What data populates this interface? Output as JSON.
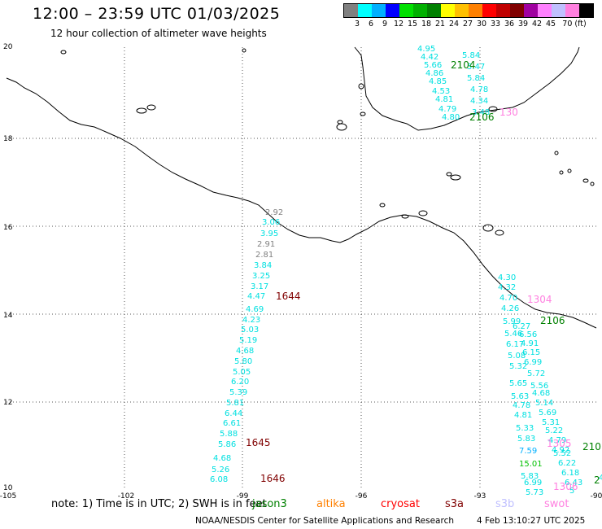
{
  "header": {
    "title": "12:00 – 23:59 UTC 01/03/2025",
    "subtitle": "12 hour collection of altimeter wave heights"
  },
  "legend": {
    "colors": [
      "#808080",
      "#00ffff",
      "#00b0ff",
      "#0000ff",
      "#00e000",
      "#00b000",
      "#008000",
      "#ffff00",
      "#ffc000",
      "#ff8000",
      "#ff0000",
      "#c00000",
      "#800000",
      "#a000a0",
      "#ff80ff",
      "#c0c0ff",
      "#ff80e0",
      "#000000"
    ],
    "labels": [
      "3",
      "6",
      "9",
      "12",
      "15",
      "18",
      "21",
      "24",
      "27",
      "30",
      "33",
      "36",
      "39",
      "42",
      "45",
      "70 (ft)"
    ]
  },
  "axes": {
    "lon_labels": [
      "-105",
      "-102",
      "-99",
      "-96",
      "-93",
      "-90"
    ],
    "lat_labels": [
      "20",
      "18",
      "16",
      "14",
      "12",
      "10"
    ]
  },
  "track_labels": [
    {
      "text": "1644",
      "color": "#800000"
    },
    {
      "text": "1645",
      "color": "#800000"
    },
    {
      "text": "1646",
      "color": "#800000"
    },
    {
      "text": "2104",
      "color": "#008000"
    },
    {
      "text": "2106",
      "color": "#008000"
    },
    {
      "text": "2106",
      "color": "#008000"
    },
    {
      "text": "130",
      "color": "#ff80e0"
    },
    {
      "text": "1304",
      "color": "#ff80e0"
    },
    {
      "text": "1305",
      "color": "#ff80e0"
    },
    {
      "text": "1306",
      "color": "#ff80e0"
    },
    {
      "text": "210",
      "color": "#008000"
    },
    {
      "text": "2",
      "color": "#008000"
    }
  ],
  "observations": [
    {
      "text": "4.95",
      "color": "#00e0e0"
    },
    {
      "text": "5.84",
      "color": "#00e0e0"
    },
    {
      "text": "4.42",
      "color": "#00e0e0"
    },
    {
      "text": "5.66",
      "color": "#00e0e0"
    },
    {
      "text": "5.47",
      "color": "#00e0e0"
    },
    {
      "text": "4.86",
      "color": "#00e0e0"
    },
    {
      "text": "5.84",
      "color": "#00e0e0"
    },
    {
      "text": "4.85",
      "color": "#00e0e0"
    },
    {
      "text": "4.78",
      "color": "#00e0e0"
    },
    {
      "text": "4.53",
      "color": "#00e0e0"
    },
    {
      "text": "4.34",
      "color": "#00e0e0"
    },
    {
      "text": "4.81",
      "color": "#00e0e0"
    },
    {
      "text": "3.48",
      "color": "#00e0e0"
    },
    {
      "text": "4.79",
      "color": "#00e0e0"
    },
    {
      "text": "4.80",
      "color": "#00e0e0"
    },
    {
      "text": "2.92",
      "color": "#808080"
    },
    {
      "text": "3.06",
      "color": "#00e0e0"
    },
    {
      "text": "3.95",
      "color": "#00e0e0"
    },
    {
      "text": "2.91",
      "color": "#808080"
    },
    {
      "text": "2.81",
      "color": "#808080"
    },
    {
      "text": "3.84",
      "color": "#00e0e0"
    },
    {
      "text": "3.25",
      "color": "#00e0e0"
    },
    {
      "text": "3.17",
      "color": "#00e0e0"
    },
    {
      "text": "4.47",
      "color": "#00e0e0"
    },
    {
      "text": "4.69",
      "color": "#00e0e0"
    },
    {
      "text": "4.23",
      "color": "#00e0e0"
    },
    {
      "text": "5.03",
      "color": "#00e0e0"
    },
    {
      "text": "5.19",
      "color": "#00e0e0"
    },
    {
      "text": "4.68",
      "color": "#00e0e0"
    },
    {
      "text": "5.80",
      "color": "#00e0e0"
    },
    {
      "text": "5.05",
      "color": "#00e0e0"
    },
    {
      "text": "6.20",
      "color": "#00e0e0"
    },
    {
      "text": "5.39",
      "color": "#00e0e0"
    },
    {
      "text": "5.81",
      "color": "#00e0e0"
    },
    {
      "text": "6.44",
      "color": "#00e0e0"
    },
    {
      "text": "6.61",
      "color": "#00e0e0"
    },
    {
      "text": "5.88",
      "color": "#00e0e0"
    },
    {
      "text": "5.86",
      "color": "#00e0e0"
    },
    {
      "text": "4.68",
      "color": "#00e0e0"
    },
    {
      "text": "5.26",
      "color": "#00e0e0"
    },
    {
      "text": "6.08",
      "color": "#00e0e0"
    },
    {
      "text": "4.30",
      "color": "#00e0e0"
    },
    {
      "text": "4.32",
      "color": "#00e0e0"
    },
    {
      "text": "4.70",
      "color": "#00e0e0"
    },
    {
      "text": "4.26",
      "color": "#00e0e0"
    },
    {
      "text": "5.99",
      "color": "#00e0e0"
    },
    {
      "text": "6.27",
      "color": "#00e0e0"
    },
    {
      "text": "5.46",
      "color": "#00e0e0"
    },
    {
      "text": "6.56",
      "color": "#00e0e0"
    },
    {
      "text": "6.17",
      "color": "#00e0e0"
    },
    {
      "text": "4.91",
      "color": "#00e0e0"
    },
    {
      "text": "5.08",
      "color": "#00e0e0"
    },
    {
      "text": "6.15",
      "color": "#00e0e0"
    },
    {
      "text": "5.32",
      "color": "#00e0e0"
    },
    {
      "text": "6.99",
      "color": "#00e0e0"
    },
    {
      "text": "5.72",
      "color": "#00e0e0"
    },
    {
      "text": "5.65",
      "color": "#00e0e0"
    },
    {
      "text": "5.56",
      "color": "#00e0e0"
    },
    {
      "text": "5.63",
      "color": "#00e0e0"
    },
    {
      "text": "4.68",
      "color": "#00e0e0"
    },
    {
      "text": "4.78",
      "color": "#00e0e0"
    },
    {
      "text": "5.14",
      "color": "#00e0e0"
    },
    {
      "text": "4.81",
      "color": "#00e0e0"
    },
    {
      "text": "5.69",
      "color": "#00e0e0"
    },
    {
      "text": "5.31",
      "color": "#00e0e0"
    },
    {
      "text": "5.33",
      "color": "#00e0e0"
    },
    {
      "text": "5.22",
      "color": "#00e0e0"
    },
    {
      "text": "5.83",
      "color": "#00e0e0"
    },
    {
      "text": "4.79",
      "color": "#00e0e0"
    },
    {
      "text": "7.59",
      "color": "#00b0ff"
    },
    {
      "text": "4.92",
      "color": "#00e0e0"
    },
    {
      "text": "15.01",
      "color": "#00c000"
    },
    {
      "text": "5.52",
      "color": "#00e0e0"
    },
    {
      "text": "5.83",
      "color": "#00e0e0"
    },
    {
      "text": "6.22",
      "color": "#00e0e0"
    },
    {
      "text": "6.99",
      "color": "#00e0e0"
    },
    {
      "text": "6.18",
      "color": "#00e0e0"
    },
    {
      "text": "6.43",
      "color": "#00e0e0"
    },
    {
      "text": "5.73",
      "color": "#00e0e0"
    },
    {
      "text": "5",
      "color": "#00e0e0"
    },
    {
      "text": "4.",
      "color": "#00e0e0"
    }
  ],
  "note": {
    "text": "note: 1) Time is in UTC; 2) SWH is in feet",
    "satellites": [
      {
        "name": "jason3",
        "color": "#008000"
      },
      {
        "name": "altika",
        "color": "#ff8000"
      },
      {
        "name": "cryosat",
        "color": "#ff0000"
      },
      {
        "name": "s3a",
        "color": "#800000"
      },
      {
        "name": "s3b",
        "color": "#c0c0ff"
      },
      {
        "name": "swot",
        "color": "#ff80e0"
      }
    ]
  },
  "footer": {
    "credit": "NOAA/NESDIS Center for Satellite Applications and Research",
    "timestamp": "4 Feb 13:10:27 UTC 2025"
  }
}
